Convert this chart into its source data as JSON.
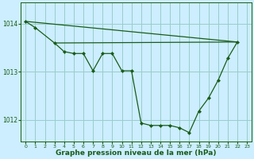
{
  "background_color": "#cceeff",
  "grid_color": "#99cccc",
  "line_color": "#1a5c1a",
  "marker_color": "#1a5c1a",
  "xlabel": "Graphe pression niveau de la mer (hPa)",
  "xlabel_fontsize": 6.5,
  "ytick_labels": [
    1012,
    1013,
    1014
  ],
  "xtick_labels": [
    0,
    1,
    2,
    3,
    4,
    5,
    6,
    7,
    8,
    9,
    10,
    11,
    12,
    13,
    14,
    15,
    16,
    17,
    18,
    19,
    20,
    21,
    22,
    23
  ],
  "ylim": [
    1011.55,
    1014.45
  ],
  "xlim": [
    -0.5,
    23.5
  ],
  "series1_x": [
    0,
    1,
    3,
    4,
    5,
    6,
    7,
    8,
    9,
    10,
    11,
    12,
    13,
    14,
    15,
    16,
    17,
    18,
    19,
    20,
    21,
    22
  ],
  "series1_y": [
    1014.05,
    1013.92,
    1013.6,
    1013.42,
    1013.38,
    1013.38,
    1013.02,
    1013.38,
    1013.38,
    1013.02,
    1013.02,
    1011.93,
    1011.88,
    1011.88,
    1011.88,
    1011.83,
    1011.73,
    1012.18,
    1012.45,
    1012.82,
    1013.28,
    1013.62
  ],
  "series2_x": [
    3,
    22
  ],
  "series2_y": [
    1013.6,
    1013.62
  ],
  "series3_x": [
    0,
    22
  ],
  "series3_y": [
    1014.05,
    1013.62
  ],
  "series2_flat_y": 1013.62
}
